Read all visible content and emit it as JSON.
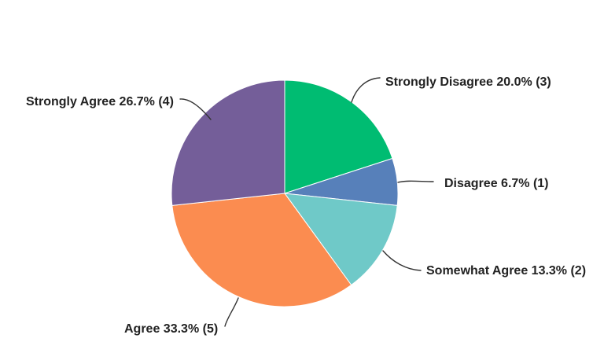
{
  "chart_data": {
    "type": "pie",
    "title": "",
    "direction": "clockwise",
    "start_angle_deg": 0,
    "slices": [
      {
        "id": "strongly-disagree",
        "label": "Strongly Disagree",
        "pct": 20.0,
        "count": 3,
        "display": "Strongly Disagree 20.0% (3)",
        "color": "#00BC72"
      },
      {
        "id": "disagree",
        "label": "Disagree",
        "pct": 6.7,
        "count": 1,
        "display": "Disagree 6.7% (1)",
        "color": "#5780BA"
      },
      {
        "id": "somewhat-agree",
        "label": "Somewhat Agree",
        "pct": 13.3,
        "count": 2,
        "display": "Somewhat Agree 13.3% (2)",
        "color": "#6FC9C8"
      },
      {
        "id": "agree",
        "label": "Agree",
        "pct": 33.3,
        "count": 5,
        "display": "Agree 33.3% (5)",
        "color": "#FB8C50"
      },
      {
        "id": "strongly-agree",
        "label": "Strongly Agree",
        "pct": 26.7,
        "count": 4,
        "display": "Strongly Agree 26.7% (4)",
        "color": "#745E99"
      }
    ],
    "colors": {
      "label_text": "#222222",
      "leader_line": "#333333",
      "background": "#ffffff",
      "slice_stroke": "#ffffff"
    },
    "legend": "none",
    "grid": "off"
  }
}
